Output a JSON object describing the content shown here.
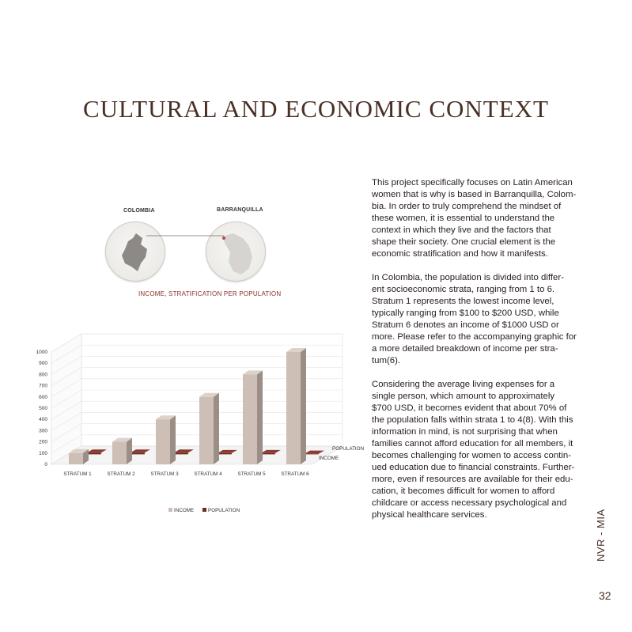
{
  "title": "Cultural and Economic  Context",
  "maps": {
    "left_label": "COLOMBIA",
    "right_label": "BARRANQUILLA",
    "caption": "INCOME, STRATIFICATION PER POPULATION"
  },
  "body": {
    "p1": "This project specifically focuses on Latin American\nwomen that is why is based in Barranquilla, Colom-\nbia. In order to truly comprehend the mindset of\nthese women, it is essential to understand the\ncontext in which they live and the factors that\nshape their society. One crucial element is the\neconomic stratification and how it manifests.",
    "p2": "In Colombia, the population is divided into differ-\nent socioeconomic strata, ranging from 1 to 6.\nStratum 1 represents the lowest income level,\ntypically ranging from $100 to $200 USD, while\nStratum 6 denotes an income of $1000 USD or\nmore. Please refer to the accompanying graphic for\na more detailed breakdown of income per stra-\ntum(6).",
    "p3": "Considering the average living expenses for a\nsingle person, which amount to approximately\n$700 USD, it becomes evident that about 70% of\nthe population falls within strata 1 to 4(8). With this\ninformation in mind, is not surprising that when\nfamilies cannot afford education for all members, it\nbecomes challenging for women to access contin-\nued education due to financial constraints. Further-\nmore, even if resources are available for their edu-\ncation, it becomes difficult for women to afford\nchildcare or access necessary psychological and\nphysical healthcare services."
  },
  "side_label": "NVR - MIA",
  "page_number": "32",
  "colors": {
    "income": "#cdbfb5",
    "population": "#6b2d24",
    "title": "#4a2f24"
  },
  "chart_data": {
    "type": "bar",
    "categories": [
      "STRATUM 1",
      "STRATUM 2",
      "STRATUM 3",
      "STRATUM 4",
      "STRATUM 5",
      "STRATUM 6"
    ],
    "series": [
      {
        "name": "INCOME",
        "values": [
          100,
          200,
          400,
          600,
          800,
          1000
        ]
      },
      {
        "name": "POPULATION",
        "values": [
          15,
          15,
          15,
          10,
          10,
          5
        ]
      }
    ],
    "ylim": [
      0,
      1000
    ],
    "yticks": [
      "0",
      "100",
      "200",
      "300",
      "400",
      "500",
      "600",
      "700",
      "800",
      "900",
      "1000"
    ],
    "depth_labels": [
      "POPULATION",
      "INCOME"
    ],
    "legend": [
      "INCOME",
      "POPULATION"
    ],
    "legend_position": "bottom",
    "grid": true
  }
}
